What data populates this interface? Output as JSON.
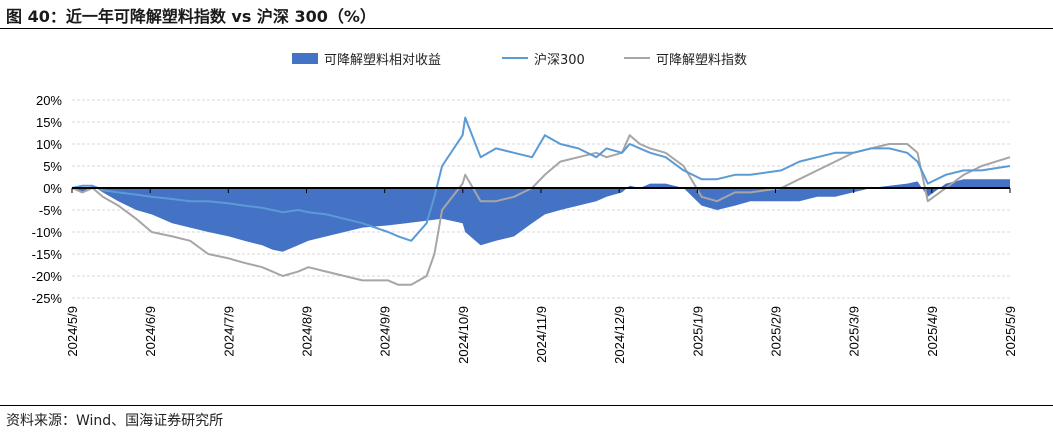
{
  "title": "图 40：近一年可降解塑料指数 vs 沪深 300（%）",
  "source": "资料来源：Wind、国海证券研究所",
  "colors": {
    "relative": "#4472C4",
    "hs300": "#5B9BD5",
    "plastic": "#A6A6A6",
    "grid": "#D9D9D9",
    "axis": "#000000"
  },
  "chart_data": {
    "type": "area",
    "title": "",
    "xlabel": "",
    "ylabel": "",
    "ylim": [
      -25,
      20
    ],
    "yticks": [
      -25,
      -20,
      -15,
      -10,
      -5,
      0,
      5,
      10,
      15,
      20
    ],
    "ytick_labels": [
      "-25%",
      "-20%",
      "-15%",
      "-10%",
      "-5%",
      "0%",
      "5%",
      "10%",
      "15%",
      "20%"
    ],
    "xlim": [
      "2024-05-09",
      "2025-05-09"
    ],
    "xtick_labels": [
      "2024/5/9",
      "2024/6/9",
      "2024/7/9",
      "2024/8/9",
      "2024/9/9",
      "2024/10/9",
      "2024/11/9",
      "2024/12/9",
      "2025/1/9",
      "2025/2/9",
      "2025/3/9",
      "2025/4/9",
      "2025/5/9"
    ],
    "grid": true,
    "legend_position": "top",
    "series": [
      {
        "name": "可降解塑料相对收益",
        "type": "area",
        "x": [
          "2024-05-09",
          "2024-05-13",
          "2024-05-17",
          "2024-05-21",
          "2024-05-27",
          "2024-06-03",
          "2024-06-09",
          "2024-06-17",
          "2024-06-24",
          "2024-07-01",
          "2024-07-09",
          "2024-07-15",
          "2024-07-22",
          "2024-07-26",
          "2024-07-30",
          "2024-08-05",
          "2024-08-09",
          "2024-08-16",
          "2024-08-23",
          "2024-08-30",
          "2024-09-09",
          "2024-09-16",
          "2024-09-23",
          "2024-09-30",
          "2024-10-08",
          "2024-10-09",
          "2024-10-15",
          "2024-10-21",
          "2024-10-28",
          "2024-11-04",
          "2024-11-09",
          "2024-11-15",
          "2024-11-22",
          "2024-11-29",
          "2024-12-03",
          "2024-12-09",
          "2024-12-12",
          "2024-12-16",
          "2024-12-20",
          "2024-12-26",
          "2025-01-02",
          "2025-01-09",
          "2025-01-15",
          "2025-01-22",
          "2025-01-28",
          "2025-02-09",
          "2025-02-16",
          "2025-02-23",
          "2025-03-02",
          "2025-03-09",
          "2025-03-16",
          "2025-03-23",
          "2025-03-30",
          "2025-04-03",
          "2025-04-07",
          "2025-04-14",
          "2025-04-21",
          "2025-04-28",
          "2025-05-09"
        ],
        "values": [
          0,
          -1,
          0.5,
          -1,
          -3,
          -5,
          -6,
          -8,
          -9,
          -10,
          -11,
          -12,
          -13,
          -14,
          -14.5,
          -13,
          -12,
          -11,
          -10,
          -9,
          -8.5,
          -8,
          -7.5,
          -7,
          -8,
          -10,
          -13,
          -12,
          -11,
          -8,
          -6,
          -5,
          -4,
          -3,
          -2,
          -1,
          0.5,
          0,
          1,
          1,
          0,
          -4,
          -5,
          -4,
          -3,
          -3,
          -3,
          -2,
          -2,
          -1,
          0,
          0.5,
          1,
          1.5,
          -2,
          1,
          2,
          2,
          2
        ]
      },
      {
        "name": "沪深300",
        "type": "line",
        "x": [
          "2024-05-09",
          "2024-05-13",
          "2024-05-17",
          "2024-05-21",
          "2024-05-27",
          "2024-06-03",
          "2024-06-09",
          "2024-06-17",
          "2024-06-24",
          "2024-07-01",
          "2024-07-09",
          "2024-07-15",
          "2024-07-22",
          "2024-07-26",
          "2024-07-30",
          "2024-08-05",
          "2024-08-09",
          "2024-08-16",
          "2024-08-23",
          "2024-08-30",
          "2024-09-09",
          "2024-09-13",
          "2024-09-18",
          "2024-09-24",
          "2024-09-27",
          "2024-09-30",
          "2024-10-08",
          "2024-10-09",
          "2024-10-15",
          "2024-10-21",
          "2024-10-28",
          "2024-11-04",
          "2024-11-09",
          "2024-11-15",
          "2024-11-22",
          "2024-11-29",
          "2024-12-03",
          "2024-12-09",
          "2024-12-12",
          "2024-12-16",
          "2024-12-20",
          "2024-12-26",
          "2025-01-02",
          "2025-01-09",
          "2025-01-15",
          "2025-01-22",
          "2025-01-28",
          "2025-02-09",
          "2025-02-16",
          "2025-02-23",
          "2025-03-02",
          "2025-03-09",
          "2025-03-16",
          "2025-03-23",
          "2025-03-30",
          "2025-04-03",
          "2025-04-07",
          "2025-04-14",
          "2025-04-21",
          "2025-04-28",
          "2025-05-09"
        ],
        "values": [
          0,
          0.5,
          0.5,
          -0.5,
          -1,
          -1.5,
          -2,
          -2.5,
          -3,
          -3,
          -3.5,
          -4,
          -4.5,
          -5,
          -5.5,
          -5,
          -5.5,
          -6,
          -7,
          -8,
          -10,
          -11,
          -12,
          -8,
          -2,
          5,
          12,
          16,
          7,
          9,
          8,
          7,
          12,
          10,
          9,
          7,
          9,
          8,
          10,
          9,
          8,
          7,
          4,
          2,
          2,
          3,
          3,
          4,
          6,
          7,
          8,
          8,
          9,
          9,
          8,
          6,
          1,
          3,
          4,
          4,
          5
        ]
      },
      {
        "name": "可降解塑料指数",
        "type": "line",
        "x": [
          "2024-05-09",
          "2024-05-13",
          "2024-05-17",
          "2024-05-21",
          "2024-05-27",
          "2024-06-03",
          "2024-06-09",
          "2024-06-17",
          "2024-06-24",
          "2024-07-01",
          "2024-07-09",
          "2024-07-15",
          "2024-07-22",
          "2024-07-26",
          "2024-07-30",
          "2024-08-05",
          "2024-08-09",
          "2024-08-16",
          "2024-08-23",
          "2024-08-30",
          "2024-09-09",
          "2024-09-13",
          "2024-09-18",
          "2024-09-24",
          "2024-09-27",
          "2024-09-30",
          "2024-10-08",
          "2024-10-09",
          "2024-10-15",
          "2024-10-21",
          "2024-10-28",
          "2024-11-04",
          "2024-11-09",
          "2024-11-15",
          "2024-11-22",
          "2024-11-29",
          "2024-12-03",
          "2024-12-09",
          "2024-12-12",
          "2024-12-16",
          "2024-12-20",
          "2024-12-26",
          "2025-01-02",
          "2025-01-09",
          "2025-01-15",
          "2025-01-22",
          "2025-01-28",
          "2025-02-09",
          "2025-02-16",
          "2025-02-23",
          "2025-03-02",
          "2025-03-09",
          "2025-03-16",
          "2025-03-23",
          "2025-03-30",
          "2025-04-03",
          "2025-04-07",
          "2025-04-14",
          "2025-04-21",
          "2025-04-28",
          "2025-05-09"
        ],
        "values": [
          0,
          -1,
          0,
          -2,
          -4,
          -7,
          -10,
          -11,
          -12,
          -15,
          -16,
          -17,
          -18,
          -19,
          -20,
          -19,
          -18,
          -19,
          -20,
          -21,
          -21,
          -22,
          -22,
          -20,
          -15,
          -5,
          1,
          3,
          -3,
          -3,
          -2,
          0,
          3,
          6,
          7,
          8,
          7,
          8,
          12,
          10,
          9,
          8,
          5,
          -2,
          -3,
          -1,
          -1,
          0,
          2,
          4,
          6,
          8,
          9,
          10,
          10,
          8,
          -3,
          0,
          3,
          5,
          7
        ]
      }
    ]
  }
}
